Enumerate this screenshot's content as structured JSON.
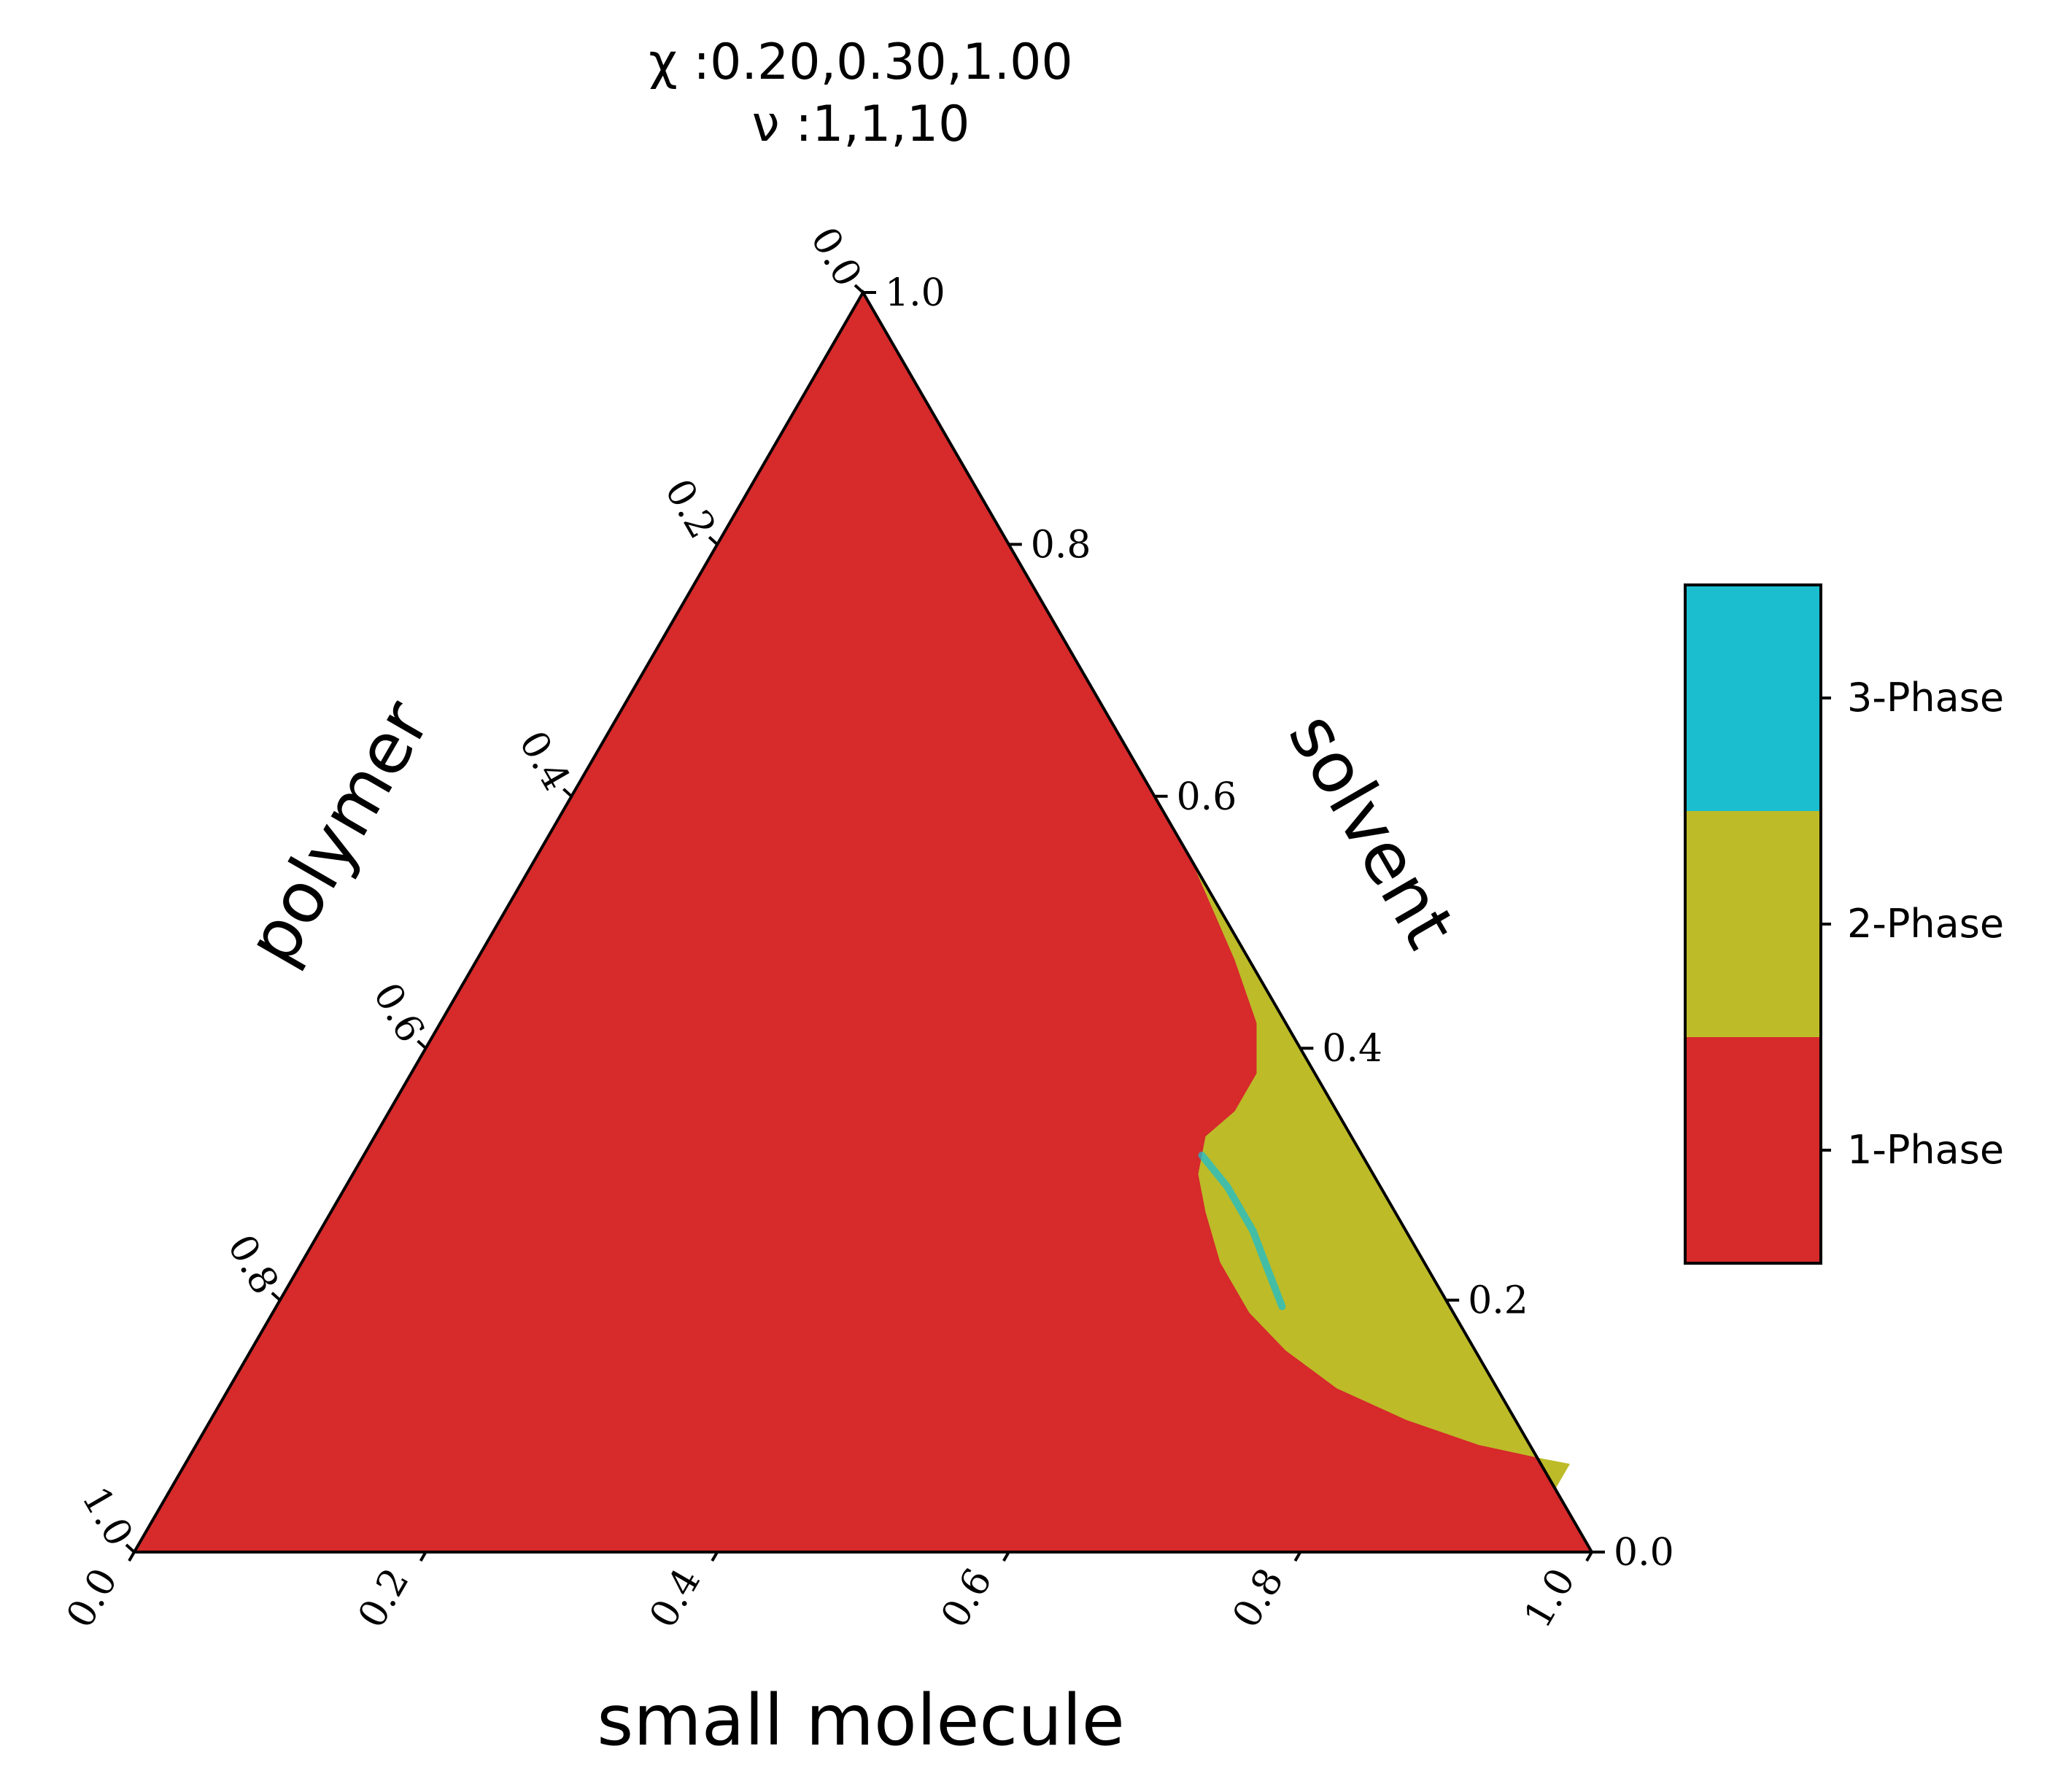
{
  "chart_data": {
    "type": "ternary-phase-diagram",
    "title_lines": [
      "χ :0.20,0.30,1.00",
      "ν :1,1,10"
    ],
    "axes": {
      "bottom": {
        "label": "small molecule",
        "ticks": [
          "0.0",
          "0.2",
          "0.4",
          "0.6",
          "0.8",
          "1.0"
        ]
      },
      "right": {
        "label": "solvent",
        "ticks": [
          "0.0",
          "0.2",
          "0.4",
          "0.6",
          "0.8",
          "1.0"
        ]
      },
      "left": {
        "label": "polymer",
        "ticks": [
          "0.0",
          "0.2",
          "0.4",
          "0.6",
          "0.8",
          "1.0"
        ]
      }
    },
    "colorbar": {
      "entries": [
        {
          "label": "1-Phase",
          "color": "#d62a2b"
        },
        {
          "label": "2-Phase",
          "color": "#bdbb28"
        },
        {
          "label": "3-Phase",
          "color": "#1bbecf"
        }
      ]
    },
    "regions": {
      "one_phase": {
        "label": "1-Phase",
        "color": "#d62a2b",
        "extent": "everywhere else"
      },
      "two_phase": {
        "label": "2-Phase",
        "color": "#bdbb28",
        "boundary_small_molecule_solvent": [
          [
            0.45,
            0.55
          ],
          [
            0.52,
            0.47
          ],
          [
            0.56,
            0.42
          ],
          [
            0.58,
            0.38
          ],
          [
            0.58,
            0.35
          ],
          [
            0.57,
            0.33
          ],
          [
            0.58,
            0.3
          ],
          [
            0.6,
            0.27
          ],
          [
            0.63,
            0.23
          ],
          [
            0.67,
            0.19
          ],
          [
            0.71,
            0.16
          ],
          [
            0.76,
            0.13
          ],
          [
            0.82,
            0.105
          ],
          [
            0.88,
            0.085
          ],
          [
            0.925,
            0.075
          ],
          [
            0.95,
            0.07
          ]
        ]
      },
      "three_phase": {
        "label": "3-Phase",
        "color": "#1bbecf",
        "extent": "thin sliver",
        "sliver_small_molecule_solvent": [
          [
            0.575,
            0.315
          ],
          [
            0.605,
            0.29
          ],
          [
            0.64,
            0.255
          ],
          [
            0.665,
            0.225
          ],
          [
            0.69,
            0.195
          ]
        ]
      }
    }
  }
}
